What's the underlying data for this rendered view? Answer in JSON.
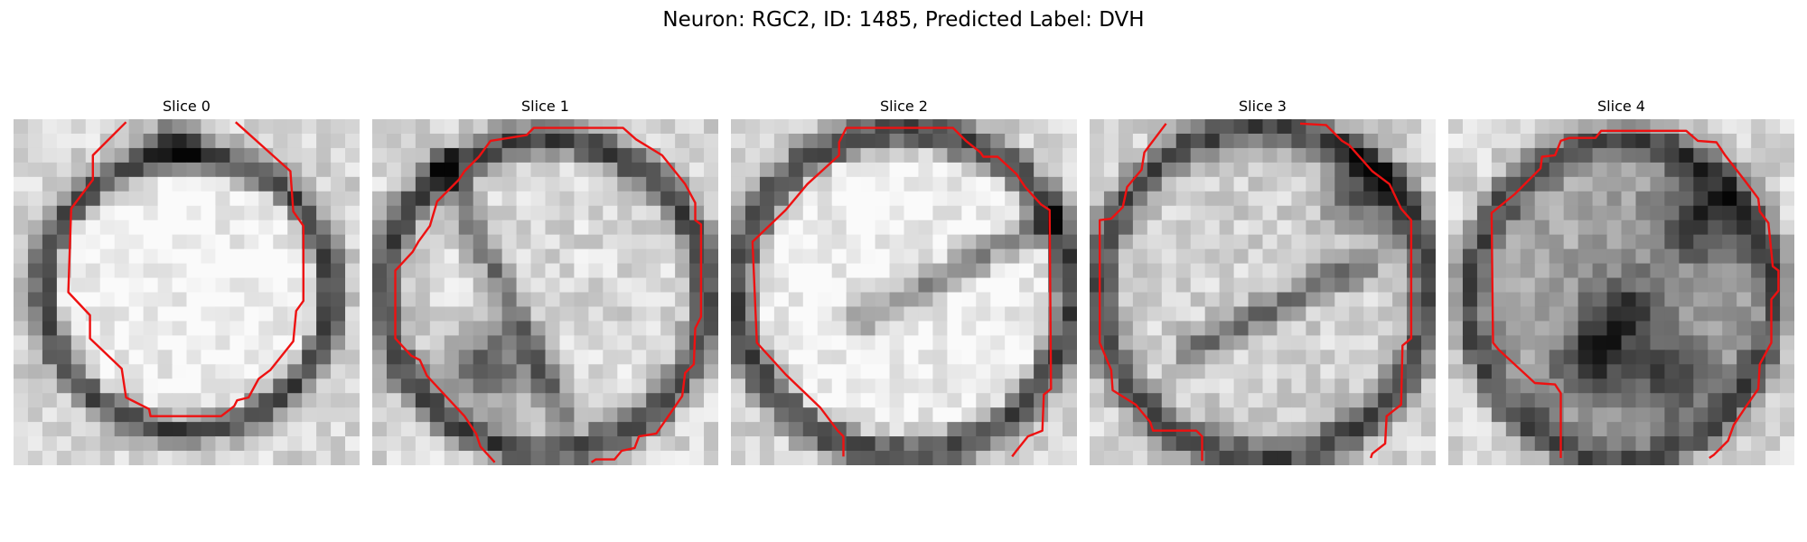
{
  "figure": {
    "title": "Neuron: RGC2, ID: 1485, Predicted Label: DVH"
  },
  "colors": {
    "contour": "#ee1111",
    "background": "#ffffff"
  },
  "panels": [
    {
      "title": "Slice 0"
    },
    {
      "title": "Slice 1"
    },
    {
      "title": "Slice 2"
    },
    {
      "title": "Slice 3"
    },
    {
      "title": "Slice 4"
    }
  ]
}
